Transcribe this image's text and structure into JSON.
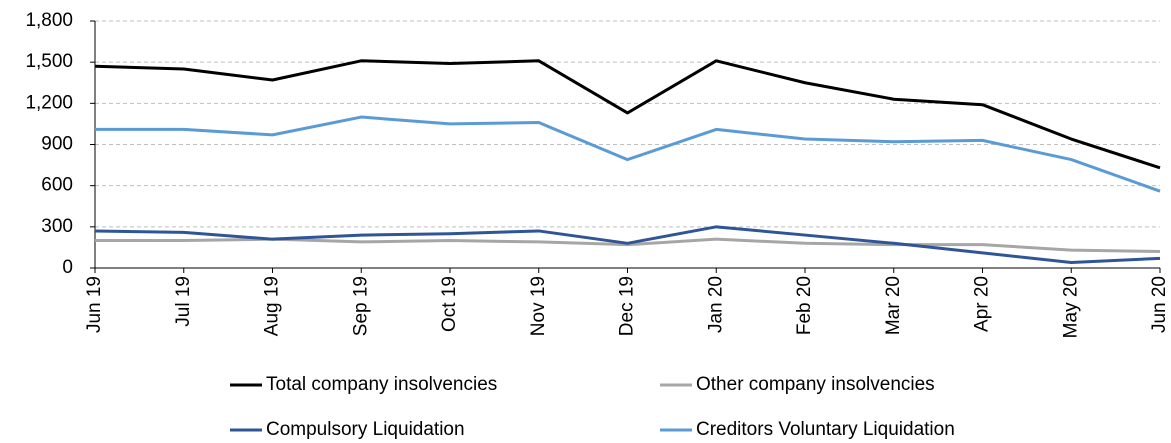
{
  "chart_data": {
    "type": "line",
    "categories": [
      "Jun 19",
      "Jul 19",
      "Aug 19",
      "Sep 19",
      "Oct 19",
      "Nov 19",
      "Dec 19",
      "Jan 20",
      "Feb 20",
      "Mar 20",
      "Apr 20",
      "May 20",
      "Jun 20"
    ],
    "series": [
      {
        "name": "Total company insolvencies",
        "color": "#000000",
        "values": [
          1470,
          1450,
          1370,
          1510,
          1490,
          1510,
          1130,
          1510,
          1350,
          1230,
          1190,
          940,
          730
        ]
      },
      {
        "name": "Other company insolvencies",
        "color": "#a6a6a6",
        "values": [
          200,
          200,
          210,
          190,
          200,
          190,
          170,
          210,
          180,
          170,
          170,
          130,
          120
        ]
      },
      {
        "name": "Compulsory Liquidation",
        "color": "#2f5597",
        "values": [
          270,
          260,
          210,
          240,
          250,
          270,
          180,
          300,
          240,
          180,
          110,
          40,
          70
        ]
      },
      {
        "name": "Creditors Voluntary Liquidation",
        "color": "#5b9bd5",
        "values": [
          1010,
          1010,
          970,
          1100,
          1050,
          1060,
          790,
          1010,
          940,
          920,
          930,
          790,
          560
        ]
      }
    ],
    "ylim": [
      0,
      1800
    ],
    "yticks": [
      0,
      300,
      600,
      900,
      {
        "value": 1200,
        "label": "1,200"
      },
      {
        "value": 1500,
        "label": "1,500"
      },
      {
        "value": 1800,
        "label": "1,800"
      }
    ],
    "grid": true
  }
}
